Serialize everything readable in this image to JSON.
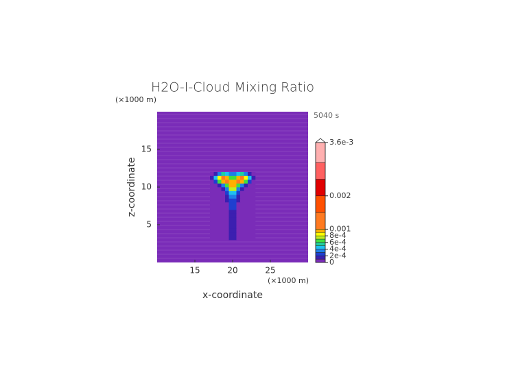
{
  "chart_data": {
    "type": "contour",
    "title": "H2O-I-Cloud Mixing Ratio",
    "time_label": "5040 s",
    "xlabel": "x-coordinate",
    "ylabel": "z-coordinate",
    "xunit": "(×1000 m)",
    "yunit": "(×1000 m)",
    "xlim": [
      10,
      30
    ],
    "ylim": [
      0,
      20
    ],
    "xticks": [
      15,
      20,
      25
    ],
    "yticks": [
      5,
      10,
      15
    ],
    "x": [
      17.25,
      17.75,
      18.25,
      18.75,
      19.25,
      19.75,
      20.25,
      20.75,
      21.25,
      21.75,
      22.25,
      22.75
    ],
    "y": [
      3.25,
      3.75,
      4.25,
      4.75,
      5.25,
      5.75,
      6.25,
      6.75,
      7.25,
      7.75,
      8.25,
      8.75,
      9.25,
      9.75,
      10.25,
      10.75,
      11.25,
      11.75
    ],
    "z": [
      [
        0,
        0,
        0,
        0,
        0,
        0.0001,
        0.0001,
        0,
        0,
        0,
        0,
        0
      ],
      [
        0,
        0,
        0,
        0,
        0,
        0.0001,
        0.0001,
        0,
        0,
        0,
        0,
        0
      ],
      [
        0,
        0,
        0,
        0,
        0,
        0.0001,
        0.0001,
        0,
        0,
        0,
        0,
        0
      ],
      [
        0,
        0,
        0,
        0,
        0,
        0.0001,
        0.0001,
        0,
        0,
        0,
        0,
        0
      ],
      [
        0,
        0,
        0,
        0,
        0,
        0.0001,
        0.0001,
        0,
        0,
        0,
        0,
        0
      ],
      [
        0,
        0,
        0,
        0,
        0,
        0.0001,
        0.0001,
        0,
        0,
        0,
        0,
        0
      ],
      [
        0,
        0,
        0,
        0,
        0,
        0.0001,
        0.0001,
        0,
        0,
        0,
        0,
        0
      ],
      [
        0,
        0,
        0,
        0,
        0,
        0.0001,
        0.0001,
        0,
        0,
        0,
        0,
        0
      ],
      [
        0,
        0,
        0,
        0,
        0,
        0.0002,
        0.0002,
        0,
        0,
        0,
        0,
        0
      ],
      [
        0,
        0,
        0,
        0,
        0,
        0.0002,
        0.0002,
        0,
        0,
        0,
        0,
        0
      ],
      [
        0,
        0,
        0,
        0,
        0.0001,
        0.0002,
        0.0002,
        0.0001,
        0,
        0,
        0,
        0
      ],
      [
        0,
        0,
        0,
        0,
        0.0001,
        0.0003,
        0.0003,
        0.0001,
        0,
        0,
        0,
        0
      ],
      [
        0,
        0,
        0,
        0,
        0.0002,
        0.0004,
        0.0004,
        0.0002,
        0,
        0,
        0,
        0
      ],
      [
        0,
        0,
        0,
        0.0001,
        0.0003,
        0.0007,
        0.0007,
        0.0003,
        0.0001,
        0,
        0,
        0
      ],
      [
        0,
        0,
        0.0001,
        0.0003,
        0.0006,
        0.0009,
        0.0009,
        0.0006,
        0.0003,
        0.0001,
        0,
        0
      ],
      [
        0,
        0.0002,
        0.0006,
        0.0009,
        0.001,
        0.0009,
        0.0009,
        0.001,
        0.0009,
        0.0006,
        0.0002,
        0
      ],
      [
        0.0001,
        0.0004,
        0.0008,
        0.0011,
        0.0009,
        0.0006,
        0.0006,
        0.0009,
        0.0011,
        0.0008,
        0.0004,
        0.0001
      ],
      [
        0,
        0.0001,
        0.0003,
        0.0005,
        0.0004,
        0.0003,
        0.0003,
        0.0004,
        0.0005,
        0.0003,
        0.0001,
        0
      ]
    ],
    "levels": [
      0,
      0.0001,
      0.0002,
      0.0003,
      0.0004,
      0.0005,
      0.0006,
      0.0007,
      0.0008,
      0.0009,
      0.001,
      0.0015,
      0.002,
      0.0025,
      0.003
    ],
    "colors": [
      "#7a2cb8",
      "#3b1fb0",
      "#1f3fd0",
      "#1f7fe8",
      "#1fc0f0",
      "#1fd0a0",
      "#40e040",
      "#c0f020",
      "#ffff00",
      "#ffb000",
      "#ff7a20",
      "#ff5000",
      "#e00000",
      "#ff6060",
      "#ffb0b0"
    ],
    "clim": [
      0,
      0.0036
    ],
    "cticks": [
      0,
      {
        "value": 0.0002,
        "label": "2e-4"
      },
      {
        "value": 0.0004,
        "label": "4e-4"
      },
      {
        "value": 0.0006,
        "label": "6e-4"
      },
      {
        "value": 0.0008,
        "label": "8e-4"
      },
      0.001,
      0.002,
      {
        "value": 0.0036,
        "label": "3.6e-3"
      }
    ]
  }
}
